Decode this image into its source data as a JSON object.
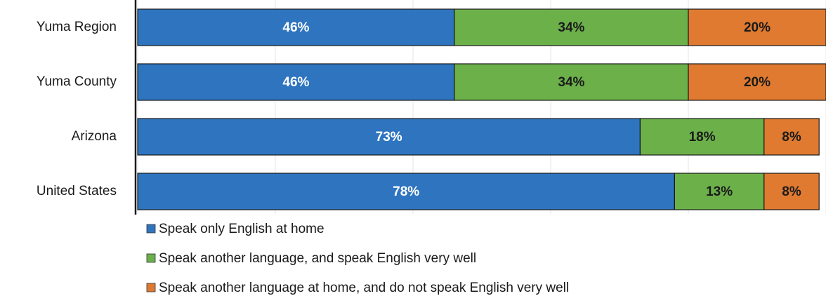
{
  "chart_data": {
    "type": "stacked-bar",
    "orientation": "horizontal",
    "categories": [
      "Yuma Region",
      "Yuma County",
      "Arizona",
      "United States"
    ],
    "series": [
      {
        "name": "Speak only English at home",
        "color": "#2e74bf",
        "values": [
          46,
          46,
          73,
          78
        ],
        "value_labels": [
          "46%",
          "46%",
          "73%",
          "78%"
        ]
      },
      {
        "name": "Speak another language, and speak English very well",
        "color": "#6cb04a",
        "values": [
          34,
          34,
          18,
          13
        ],
        "value_labels": [
          "34%",
          "34%",
          "18%",
          "13%"
        ]
      },
      {
        "name": "Speak another language at home, and do not speak English very well",
        "color": "#df7a30",
        "values": [
          20,
          20,
          8,
          8
        ],
        "value_labels": [
          "20%",
          "20%",
          "8%",
          "8%"
        ]
      }
    ],
    "xlim": [
      0,
      100
    ],
    "xticks": [
      0,
      20,
      40,
      60,
      80,
      100
    ],
    "grid": true,
    "legend": "bottom"
  }
}
